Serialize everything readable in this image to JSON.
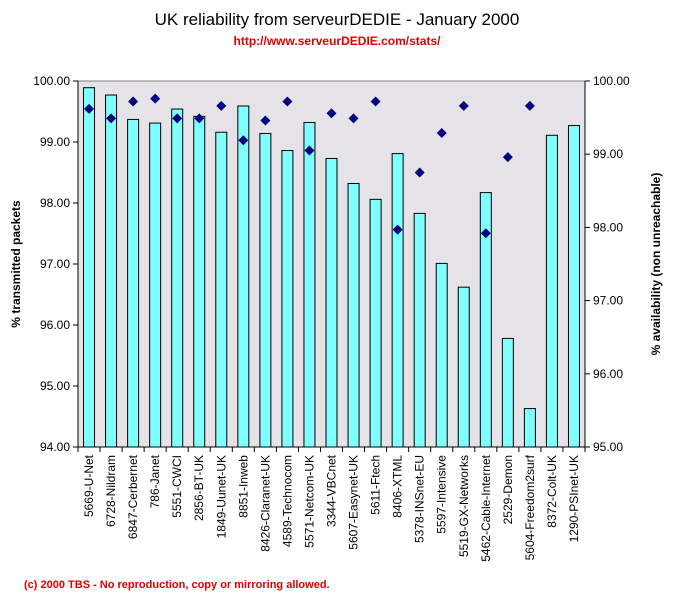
{
  "chart_data": {
    "type": "bar",
    "title": "UK reliability from serveurDEDIE - January 2000",
    "subtitle": "http://www.serveurDEDIE.com/stats/",
    "footer": "(c) 2000 TBS - No reproduction, copy or mirroring allowed.",
    "ylabel": "% transmitted packets",
    "y2label": "% availability (non unreachable)",
    "ylim": [
      94,
      100
    ],
    "y2lim": [
      95,
      100
    ],
    "yticks": [
      "94.00",
      "95.00",
      "96.00",
      "97.00",
      "98.00",
      "99.00",
      "100.00"
    ],
    "y2ticks": [
      "95.00",
      "96.00",
      "97.00",
      "98.00",
      "99.00",
      "100.00"
    ],
    "grid": false,
    "categories": [
      "5669-U-Net",
      "6728-Nildram",
      "6847-Cerbernet",
      "786-Janet",
      "5551-CWCI",
      "2856-BT-UK",
      "1849-Uunet-UK",
      "8851-Inweb",
      "8426-Claranet-UK",
      "4589-Technocom",
      "5571-Netcom-UK",
      "3344-VBCnet",
      "5607-Easynet-UK",
      "5611-Ftech",
      "8406-XTML",
      "5378-INSnet-EU",
      "5597-Intensive",
      "5519-GX-Networks",
      "5462-Cable-Internet",
      "2529-Demon",
      "5604-Freedom2surf",
      "8372-Colt-UK",
      "1290-PSInet-UK"
    ],
    "series": [
      {
        "type": "bar",
        "axis": "left",
        "color": "#80ffff",
        "values": [
          99.89,
          99.77,
          99.37,
          99.31,
          99.54,
          99.42,
          99.16,
          99.59,
          99.14,
          98.86,
          99.32,
          98.73,
          98.32,
          98.06,
          98.81,
          97.83,
          97.01,
          96.62,
          98.17,
          95.78,
          94.63,
          99.11,
          99.27
        ]
      },
      {
        "type": "scatter",
        "axis": "right",
        "marker": "diamond",
        "color": "#000080",
        "values": [
          99.62,
          99.49,
          99.72,
          99.76,
          99.49,
          99.49,
          99.66,
          99.19,
          99.46,
          99.72,
          99.05,
          99.56,
          99.49,
          99.72,
          97.97,
          98.75,
          99.29,
          99.66,
          97.92,
          98.96,
          99.66,
          null,
          null
        ]
      }
    ],
    "plot_background": "#e6e3e8"
  }
}
